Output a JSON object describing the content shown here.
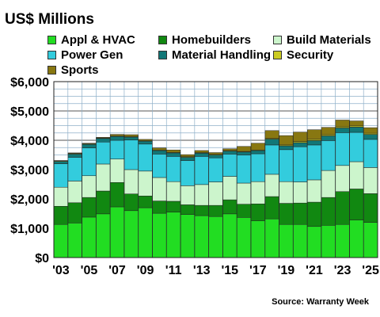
{
  "chart_data": {
    "type": "bar",
    "stacked": true,
    "title": "US$ Millions",
    "source": "Source: Warranty Week",
    "categories": [
      "'03",
      "'04",
      "'05",
      "'06",
      "'07",
      "'08",
      "'09",
      "'10",
      "'11",
      "'12",
      "'13",
      "'14",
      "'15",
      "'16",
      "'17",
      "'18",
      "'19",
      "'20",
      "'21",
      "'22",
      "'23",
      "'24",
      "'25"
    ],
    "x_tick_labels": [
      "'03",
      "'05",
      "'07",
      "'09",
      "'11",
      "'13",
      "'15",
      "'17",
      "'19",
      "'21",
      "'23",
      "'25"
    ],
    "y_tick_labels": [
      "$0",
      "$1,000",
      "$2,000",
      "$3,000",
      "$4,000",
      "$5,000",
      "$6,000"
    ],
    "ylim": [
      0,
      6000
    ],
    "grid": true,
    "legend_position": "top",
    "series": [
      {
        "name": "Appl & HVAC",
        "color": "#22dd22",
        "values": [
          1130,
          1180,
          1380,
          1490,
          1730,
          1600,
          1700,
          1510,
          1550,
          1470,
          1430,
          1400,
          1490,
          1370,
          1250,
          1320,
          1130,
          1130,
          1060,
          1100,
          1130,
          1280,
          1200
        ]
      },
      {
        "name": "Homebuilders",
        "color": "#118811",
        "values": [
          620,
          690,
          670,
          780,
          830,
          570,
          400,
          420,
          370,
          330,
          350,
          380,
          480,
          450,
          580,
          760,
          720,
          730,
          830,
          950,
          1120,
          1060,
          980
        ]
      },
      {
        "name": "Build Materials",
        "color": "#ccf5cc",
        "values": [
          650,
          740,
          740,
          920,
          800,
          830,
          850,
          800,
          670,
          650,
          710,
          800,
          800,
          720,
          760,
          760,
          740,
          720,
          760,
          920,
          890,
          930,
          890
        ]
      },
      {
        "name": "Power Gen",
        "color": "#33ccdd",
        "values": [
          800,
          810,
          950,
          750,
          640,
          1010,
          920,
          800,
          860,
          860,
          960,
          820,
          760,
          960,
          950,
          1000,
          1090,
          1200,
          1190,
          1020,
          1120,
          1000,
          960
        ]
      },
      {
        "name": "Material Handling",
        "color": "#117777",
        "values": [
          80,
          110,
          120,
          120,
          130,
          100,
          100,
          120,
          120,
          110,
          110,
          100,
          100,
          100,
          110,
          200,
          130,
          140,
          150,
          160,
          160,
          180,
          170
        ]
      },
      {
        "name": "Security",
        "color": "#cccc22",
        "values": [
          20,
          20,
          20,
          20,
          20,
          20,
          20,
          20,
          20,
          20,
          20,
          20,
          20,
          20,
          20,
          20,
          30,
          40,
          40,
          40,
          40,
          40,
          40
        ]
      },
      {
        "name": "Sports",
        "color": "#887711",
        "values": [
          10,
          20,
          20,
          20,
          50,
          60,
          40,
          70,
          80,
          70,
          70,
          60,
          60,
          170,
          230,
          270,
          320,
          320,
          330,
          250,
          230,
          170,
          190
        ]
      }
    ]
  }
}
